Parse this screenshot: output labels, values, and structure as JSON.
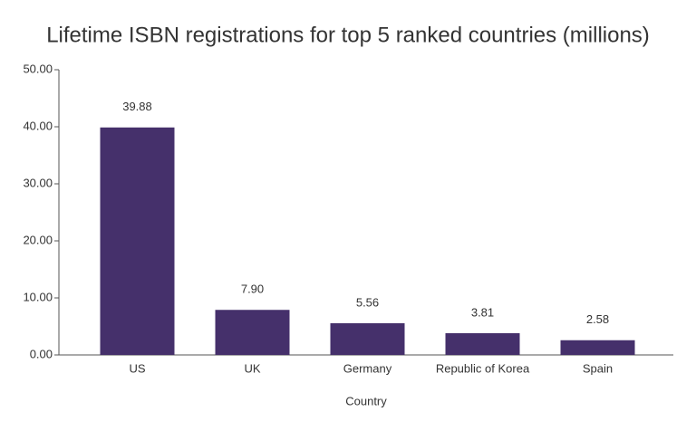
{
  "chart_data": {
    "type": "bar",
    "title": "Lifetime ISBN registrations for top 5 ranked countries (millions)",
    "x_label": "Country",
    "categories": [
      "US",
      "UK",
      "Germany",
      "Republic of Korea",
      "Spain"
    ],
    "values": [
      39.88,
      7.9,
      5.56,
      3.81,
      2.58
    ],
    "value_labels": [
      "39.88",
      "7.90",
      "5.56",
      "3.81",
      "2.58"
    ],
    "color": "#45306b",
    "ylim": [
      0,
      50
    ],
    "yticks": [
      {
        "value": 0,
        "label": "0.00"
      },
      {
        "value": 10,
        "label": "10.00"
      },
      {
        "value": 20,
        "label": "20.00"
      },
      {
        "value": 30,
        "label": "30.00"
      },
      {
        "value": 40,
        "label": "40.00"
      },
      {
        "value": 50,
        "label": "50.00"
      }
    ],
    "grid": false
  }
}
